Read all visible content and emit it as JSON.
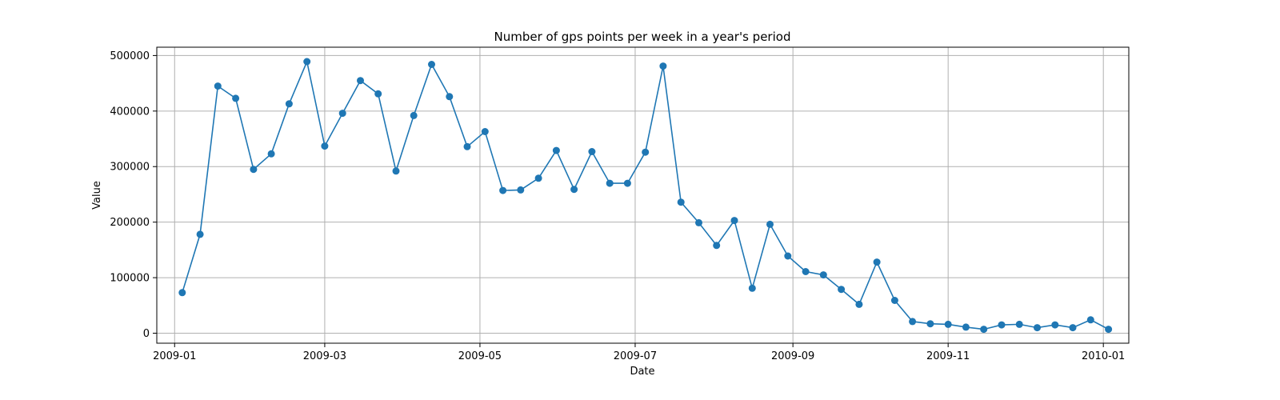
{
  "chart_data": {
    "type": "line",
    "title": "Number of gps points per week in a year's period",
    "xlabel": "Date",
    "ylabel": "Value",
    "x_axis_kind": "date",
    "xlim": [
      "2008-12-25",
      "2010-01-11"
    ],
    "ylim": [
      -18000,
      515000
    ],
    "x_ticks": [
      {
        "date": "2009-01-01",
        "label": "2009-01"
      },
      {
        "date": "2009-03-01",
        "label": "2009-03"
      },
      {
        "date": "2009-05-01",
        "label": "2009-05"
      },
      {
        "date": "2009-07-01",
        "label": "2009-07"
      },
      {
        "date": "2009-09-01",
        "label": "2009-09"
      },
      {
        "date": "2009-11-01",
        "label": "2009-11"
      },
      {
        "date": "2010-01-01",
        "label": "2010-01"
      }
    ],
    "y_ticks": [
      {
        "value": 0,
        "label": "0"
      },
      {
        "value": 100000,
        "label": "100000"
      },
      {
        "value": 200000,
        "label": "200000"
      },
      {
        "value": 300000,
        "label": "300000"
      },
      {
        "value": 400000,
        "label": "400000"
      },
      {
        "value": 500000,
        "label": "500000"
      }
    ],
    "grid": true,
    "colors": {
      "series": "#1f77b4",
      "grid": "#b0b0b0",
      "axis": "#000000"
    },
    "series": [
      {
        "marker": "circle",
        "x": [
          "2009-01-04",
          "2009-01-11",
          "2009-01-18",
          "2009-01-25",
          "2009-02-01",
          "2009-02-08",
          "2009-02-15",
          "2009-02-22",
          "2009-03-01",
          "2009-03-08",
          "2009-03-15",
          "2009-03-22",
          "2009-03-29",
          "2009-04-05",
          "2009-04-12",
          "2009-04-19",
          "2009-04-26",
          "2009-05-03",
          "2009-05-10",
          "2009-05-17",
          "2009-05-24",
          "2009-05-31",
          "2009-06-07",
          "2009-06-14",
          "2009-06-21",
          "2009-06-28",
          "2009-07-05",
          "2009-07-12",
          "2009-07-19",
          "2009-07-26",
          "2009-08-02",
          "2009-08-09",
          "2009-08-16",
          "2009-08-23",
          "2009-08-30",
          "2009-09-06",
          "2009-09-13",
          "2009-09-20",
          "2009-09-27",
          "2009-10-04",
          "2009-10-11",
          "2009-10-18",
          "2009-10-25",
          "2009-11-01",
          "2009-11-08",
          "2009-11-15",
          "2009-11-22",
          "2009-11-29",
          "2009-12-06",
          "2009-12-13",
          "2009-12-20",
          "2009-12-27",
          "2010-01-03"
        ],
        "values": [
          73000,
          178000,
          445000,
          423000,
          295000,
          323000,
          413000,
          489000,
          337000,
          396000,
          455000,
          431000,
          292000,
          392000,
          484000,
          426000,
          336000,
          363000,
          257000,
          258000,
          279000,
          329000,
          259000,
          327000,
          270000,
          270000,
          326000,
          481000,
          236000,
          199000,
          158000,
          203000,
          81000,
          196000,
          139000,
          111000,
          105000,
          79000,
          52000,
          128000,
          59000,
          21000,
          17000,
          16000,
          11000,
          7000,
          15000,
          16000,
          10000,
          15000,
          10000,
          24000,
          7000
        ]
      }
    ]
  }
}
